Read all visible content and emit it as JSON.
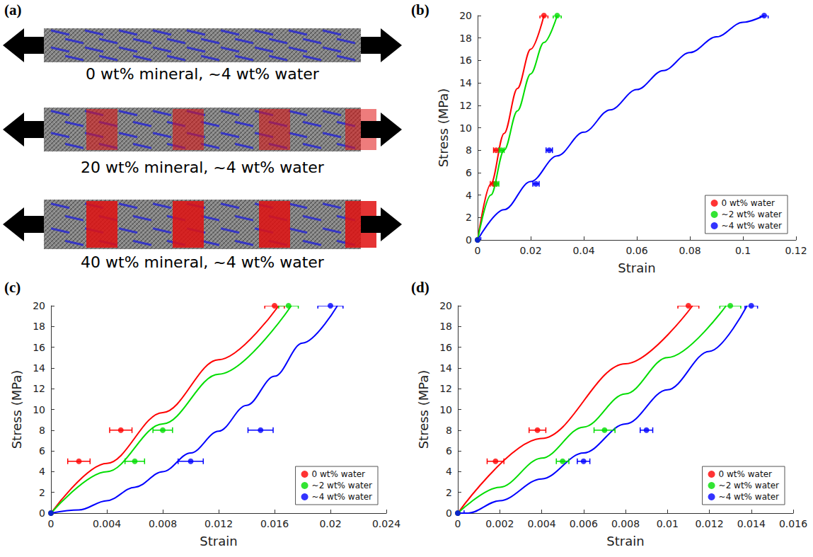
{
  "panel_a": {
    "label": "(a)",
    "rods": [
      "0 wt% mineral, ~4 wt% water",
      "20 wt% mineral, ~4 wt% water",
      "40 wt% mineral, ~4 wt% water"
    ]
  },
  "chart_data": [
    {
      "type": "scatter",
      "panel_label": "(b)",
      "x_label": "Strain",
      "y_label": "Stress (MPa)",
      "xlim": [
        0,
        0.12
      ],
      "xticks": [
        0,
        0.02,
        0.04,
        0.06,
        0.08,
        0.1,
        0.12
      ],
      "ylim": [
        0,
        20
      ],
      "yticks": [
        0,
        2,
        4,
        6,
        8,
        10,
        12,
        14,
        16,
        18,
        20
      ],
      "grid": false,
      "legend": "lower right",
      "series": [
        {
          "name": "0 wt% water",
          "color": "#ff0000",
          "marker": "circle",
          "line_style": "solid",
          "x": [
            0,
            0.006,
            0.007,
            0.025
          ],
          "values": [
            0,
            5,
            8,
            20
          ],
          "x_error": [
            0,
            0.0012,
            0.001,
            0.0015
          ],
          "curve_x": [
            0,
            0.005,
            0.01,
            0.015,
            0.02,
            0.025
          ],
          "curve_y": [
            0,
            5,
            9.5,
            13.5,
            17,
            20
          ]
        },
        {
          "name": "~2 wt% water",
          "color": "#00dd00",
          "marker": "circle",
          "line_style": "solid",
          "x": [
            0,
            0.007,
            0.009,
            0.03
          ],
          "values": [
            0,
            5,
            8,
            20
          ],
          "x_error": [
            0,
            0.001,
            0.001,
            0.0015
          ],
          "curve_x": [
            0,
            0.005,
            0.01,
            0.015,
            0.02,
            0.025,
            0.03
          ],
          "curve_y": [
            0,
            4,
            8,
            11.5,
            14.8,
            17.6,
            20
          ]
        },
        {
          "name": "~4 wt% water",
          "color": "#0000ff",
          "marker": "circle",
          "line_style": "solid",
          "x": [
            0,
            0.022,
            0.027,
            0.108
          ],
          "values": [
            0,
            5,
            8,
            20
          ],
          "x_error": [
            0.0012,
            0.0012,
            0.0012,
            0.0015
          ],
          "curve_x": [
            0,
            0.01,
            0.02,
            0.03,
            0.04,
            0.05,
            0.06,
            0.07,
            0.08,
            0.09,
            0.1,
            0.108
          ],
          "curve_y": [
            0,
            2.7,
            5.2,
            7.5,
            9.6,
            11.6,
            13.4,
            15.1,
            16.7,
            18.1,
            19.4,
            20
          ]
        }
      ]
    },
    {
      "type": "scatter",
      "panel_label": "(c)",
      "x_label": "Strain",
      "y_label": "Stress (MPa)",
      "xlim": [
        0,
        0.024
      ],
      "xticks": [
        0,
        0.004,
        0.008,
        0.012,
        0.016,
        0.02,
        0.024
      ],
      "ylim": [
        0,
        20
      ],
      "yticks": [
        0,
        2,
        4,
        6,
        8,
        10,
        12,
        14,
        16,
        18,
        20
      ],
      "grid": false,
      "legend": "lower right",
      "series": [
        {
          "name": "0 wt% water",
          "color": "#ff0000",
          "marker": "circle",
          "line_style": "solid",
          "x": [
            0,
            0.002,
            0.005,
            0.016
          ],
          "values": [
            0,
            5,
            8,
            20
          ],
          "x_error": [
            0,
            0.0008,
            0.0008,
            0.0007
          ],
          "curve_x": [
            0,
            0.004,
            0.008,
            0.012,
            0.0163
          ],
          "curve_y": [
            0,
            4.8,
            9.7,
            14.8,
            20
          ]
        },
        {
          "name": "~2 wt% water",
          "color": "#00dd00",
          "marker": "circle",
          "line_style": "solid",
          "x": [
            0,
            0.006,
            0.008,
            0.017
          ],
          "values": [
            0,
            5,
            8,
            20
          ],
          "x_error": [
            0,
            0.0007,
            0.0007,
            0.0007
          ],
          "curve_x": [
            0,
            0.004,
            0.008,
            0.012,
            0.0172
          ],
          "curve_y": [
            0,
            4,
            8.6,
            13.4,
            20
          ]
        },
        {
          "name": "~4 wt% water",
          "color": "#0000ff",
          "marker": "circle",
          "line_style": "solid",
          "x": [
            0,
            0.01,
            0.015,
            0.02
          ],
          "values": [
            0,
            5,
            8,
            20
          ],
          "x_error": [
            0,
            0.0009,
            0.0009,
            0.0009
          ],
          "curve_x": [
            0,
            0.002,
            0.004,
            0.006,
            0.008,
            0.01,
            0.012,
            0.014,
            0.016,
            0.018,
            0.0205
          ],
          "curve_y": [
            0,
            0.3,
            1.2,
            2.5,
            4,
            5.8,
            7.9,
            10.4,
            13.2,
            16.4,
            20
          ]
        }
      ]
    },
    {
      "type": "scatter",
      "panel_label": "(d)",
      "x_label": "Strain",
      "y_label": "Stress (MPa)",
      "xlim": [
        0,
        0.016
      ],
      "xticks": [
        0,
        0.002,
        0.004,
        0.006,
        0.008,
        0.01,
        0.012,
        0.014,
        0.016
      ],
      "ylim": [
        0,
        20
      ],
      "yticks": [
        0,
        2,
        4,
        6,
        8,
        10,
        12,
        14,
        16,
        18,
        20
      ],
      "grid": false,
      "legend": "lower right",
      "series": [
        {
          "name": "0 wt% water",
          "color": "#ff0000",
          "marker": "circle",
          "line_style": "solid",
          "x": [
            0,
            0.0018,
            0.0038,
            0.011
          ],
          "values": [
            0,
            5,
            8,
            20
          ],
          "x_error": [
            0,
            0.0004,
            0.0004,
            0.0005
          ],
          "curve_x": [
            0,
            0.004,
            0.008,
            0.0112
          ],
          "curve_y": [
            0,
            7.2,
            14.4,
            20
          ]
        },
        {
          "name": "~2 wt% water",
          "color": "#00dd00",
          "marker": "circle",
          "line_style": "solid",
          "x": [
            0,
            0.005,
            0.007,
            0.013
          ],
          "values": [
            0,
            5,
            8,
            20
          ],
          "x_error": [
            0,
            0.0003,
            0.0005,
            0.0005
          ],
          "curve_x": [
            0,
            0.002,
            0.004,
            0.006,
            0.008,
            0.01,
            0.0128
          ],
          "curve_y": [
            0,
            2.5,
            5.3,
            8.3,
            11.5,
            15,
            20
          ]
        },
        {
          "name": "~4 wt% water",
          "color": "#0000ff",
          "marker": "circle",
          "line_style": "solid",
          "x": [
            0,
            0.006,
            0.009,
            0.014
          ],
          "values": [
            0,
            5,
            8,
            20
          ],
          "x_error": [
            0.0003,
            0.0003,
            0.0003,
            0.0003
          ],
          "curve_x": [
            0,
            0.0005,
            0.002,
            0.004,
            0.006,
            0.008,
            0.01,
            0.012,
            0.0138
          ],
          "curve_y": [
            0,
            0,
            1.2,
            3.3,
            5.8,
            8.6,
            11.9,
            15.6,
            20
          ]
        }
      ]
    }
  ]
}
